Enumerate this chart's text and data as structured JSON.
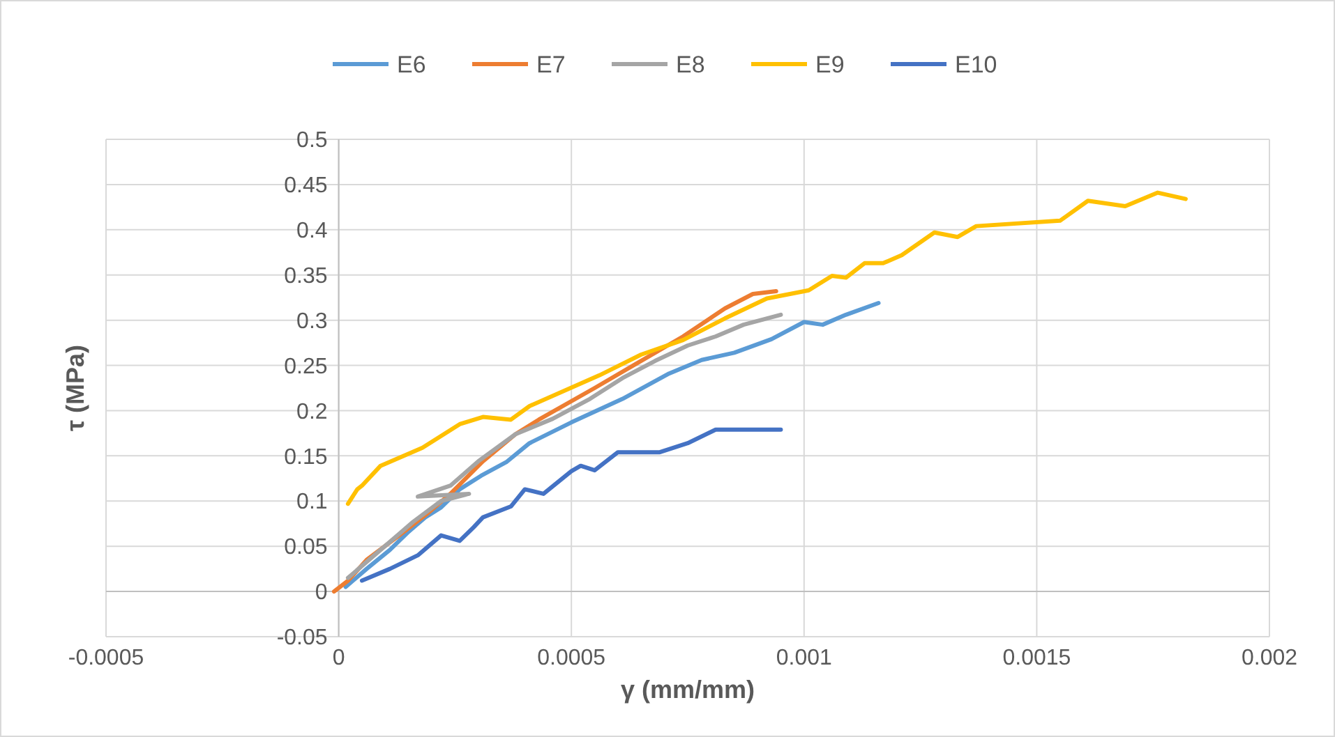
{
  "chart_data": {
    "type": "line",
    "xlabel": "γ (mm/mm)",
    "ylabel": "τ (MPa)",
    "xlim": [
      -0.0005,
      0.002
    ],
    "xticks": [
      -0.0005,
      0,
      0.0005,
      0.001,
      0.0015,
      0.002
    ],
    "ylim": [
      -0.05,
      0.5
    ],
    "yticks": [
      -0.05,
      0,
      0.05,
      0.1,
      0.15,
      0.2,
      0.25,
      0.3,
      0.35,
      0.4,
      0.45,
      0.5
    ],
    "grid": true,
    "legend": "top",
    "marker": "none",
    "line_style": "solid",
    "series": [
      {
        "name": "E6",
        "color": "#5b9bd5",
        "x": [
          1.5e-05,
          6e-05,
          0.00011,
          0.00015,
          0.000186,
          0.00022,
          0.00026,
          0.000306,
          0.00036,
          0.00041,
          0.0005,
          0.00061,
          0.00071,
          0.00078,
          0.00085,
          0.00093,
          0.001,
          0.00104,
          0.00109,
          0.00116
        ],
        "values": [
          0.005,
          0.025,
          0.046,
          0.066,
          0.082,
          0.093,
          0.113,
          0.128,
          0.143,
          0.164,
          0.187,
          0.213,
          0.241,
          0.256,
          0.264,
          0.279,
          0.298,
          0.295,
          0.306,
          0.319
        ]
      },
      {
        "name": "E7",
        "color": "#ed7d31",
        "x": [
          -1e-05,
          2e-05,
          6e-05,
          0.00013,
          0.00019,
          0.00024,
          0.00031,
          0.00038,
          0.00043,
          0.00055,
          0.00064,
          0.00074,
          0.00083,
          0.00089,
          0.00094
        ],
        "values": [
          0,
          0.012,
          0.035,
          0.062,
          0.086,
          0.108,
          0.144,
          0.174,
          0.19,
          0.225,
          0.252,
          0.282,
          0.313,
          0.329,
          0.332
        ]
      },
      {
        "name": "E8",
        "color": "#a5a5a5",
        "x": [
          2e-05,
          9e-05,
          0.00016,
          0.00022,
          0.00028,
          0.00017,
          0.00024,
          0.0003,
          0.00038,
          0.00046,
          0.00054,
          0.00061,
          0.00068,
          0.00075,
          0.00081,
          0.00087,
          0.00095
        ],
        "values": [
          0.015,
          0.046,
          0.077,
          0.1,
          0.108,
          0.105,
          0.117,
          0.144,
          0.174,
          0.191,
          0.213,
          0.236,
          0.255,
          0.272,
          0.282,
          0.295,
          0.306
        ]
      },
      {
        "name": "E9",
        "color": "#ffc000",
        "x": [
          2e-05,
          4e-05,
          5e-05,
          9e-05,
          0.00018,
          0.00026,
          0.00031,
          0.00037,
          0.00041,
          0.00056,
          0.00065,
          0.00074,
          0.00083,
          0.00092,
          0.00101,
          0.00106,
          0.00109,
          0.00113,
          0.00117,
          0.00121,
          0.00128,
          0.00133,
          0.00137,
          0.00155,
          0.00161,
          0.00169,
          0.00176,
          0.00182
        ],
        "values": [
          0.097,
          0.113,
          0.117,
          0.139,
          0.159,
          0.185,
          0.193,
          0.19,
          0.205,
          0.239,
          0.262,
          0.278,
          0.302,
          0.324,
          0.333,
          0.349,
          0.347,
          0.363,
          0.363,
          0.372,
          0.397,
          0.392,
          0.404,
          0.41,
          0.432,
          0.426,
          0.441,
          0.434
        ]
      },
      {
        "name": "E10",
        "color": "#4472c4",
        "x": [
          5e-05,
          0.00011,
          0.00017,
          0.00022,
          0.00026,
          0.00029,
          0.00031,
          0.00037,
          0.0004,
          0.00044,
          0.0005,
          0.00052,
          0.00055,
          0.0006,
          0.00069,
          0.00075,
          0.00081,
          0.00095
        ],
        "values": [
          0.012,
          0.025,
          0.04,
          0.062,
          0.056,
          0.071,
          0.082,
          0.094,
          0.113,
          0.108,
          0.133,
          0.139,
          0.134,
          0.154,
          0.154,
          0.164,
          0.179,
          0.179
        ]
      }
    ]
  }
}
